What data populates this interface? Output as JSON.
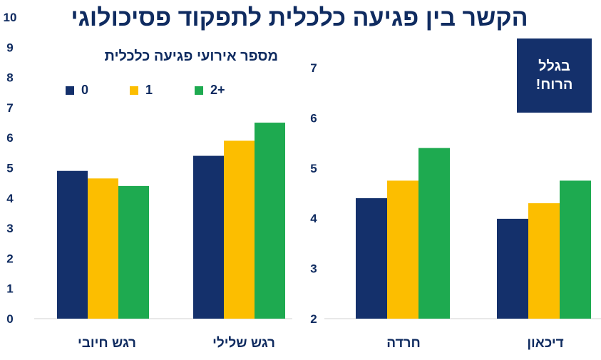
{
  "title": "הקשר בין פגיעה כלכלית לתפקוד פסיכולוגי",
  "logo": {
    "line1": "בגלל",
    "line2": "הרוח!"
  },
  "legend": {
    "title": "מספר אירועי  פגיעה כלכלית",
    "items": [
      {
        "label": "0",
        "color": "#14306b"
      },
      {
        "label": "1",
        "color": "#fcbe00"
      },
      {
        "label": "2+",
        "color": "#1eaa50"
      }
    ]
  },
  "chart_data": [
    {
      "type": "bar",
      "categories": [
        "רגש חיובי",
        "רגש שלילי"
      ],
      "series": [
        {
          "name": "0",
          "values": [
            4.9,
            5.4
          ]
        },
        {
          "name": "1",
          "values": [
            4.65,
            5.9
          ]
        },
        {
          "name": "2+",
          "values": [
            4.4,
            6.5
          ]
        }
      ],
      "ylim": [
        0,
        10
      ],
      "yticks": [
        0,
        1,
        2,
        3,
        4,
        5,
        6,
        7,
        8,
        9,
        10
      ]
    },
    {
      "type": "bar",
      "categories": [
        "חרדה",
        "דיכאון"
      ],
      "series": [
        {
          "name": "0",
          "values": [
            4.4,
            3.99
          ]
        },
        {
          "name": "1",
          "values": [
            4.75,
            4.3
          ]
        },
        {
          "name": "2+",
          "values": [
            5.4,
            4.75
          ]
        }
      ],
      "ylim": [
        2,
        7
      ],
      "yticks": [
        2,
        3,
        4,
        5,
        6,
        7
      ]
    }
  ],
  "colors": {
    "text": "#0f2b60",
    "axis": "#d9d9d9"
  }
}
